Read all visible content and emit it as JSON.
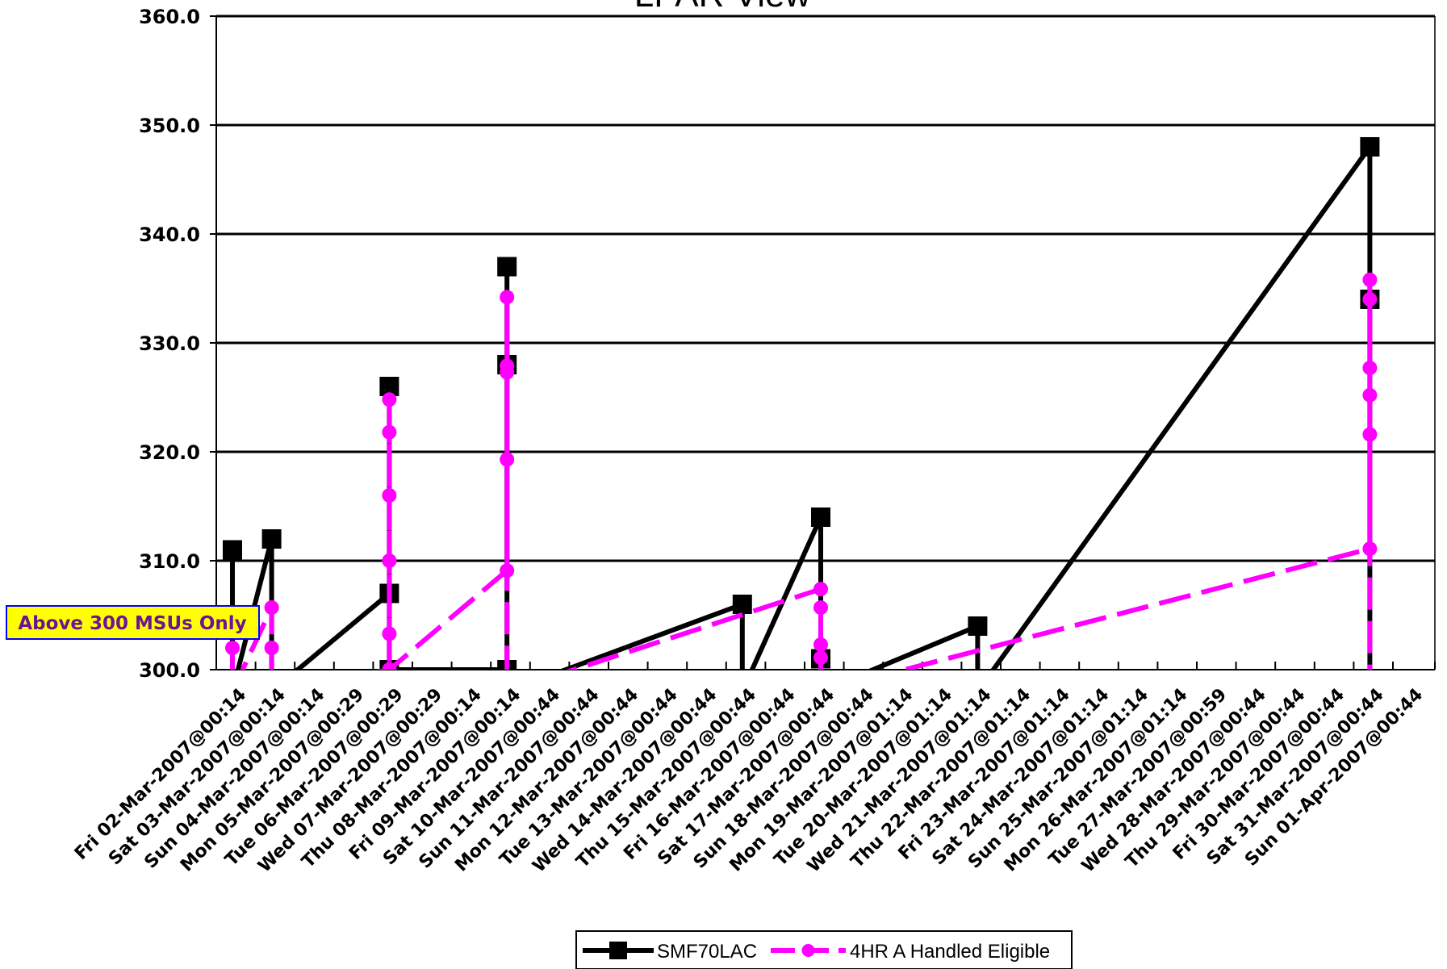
{
  "chart_data": {
    "type": "line",
    "title": "LPAR View",
    "xlabel": "",
    "ylabel": "",
    "ylim": [
      300,
      360
    ],
    "yticks": [
      "300.0",
      "310.0",
      "320.0",
      "330.0",
      "340.0",
      "350.0",
      "360.0"
    ],
    "grid": true,
    "legend_position": "bottom-center",
    "categories": [
      "Fri 02-Mar-2007@00:14",
      "Sat 03-Mar-2007@00:14",
      "Sun 04-Mar-2007@00:14",
      "Mon 05-Mar-2007@00:29",
      "Tue 06-Mar-2007@00:29",
      "Wed 07-Mar-2007@00:29",
      "Thu 08-Mar-2007@00:14",
      "Fri 09-Mar-2007@00:14",
      "Sat 10-Mar-2007@00:44",
      "Sun 11-Mar-2007@00:44",
      "Mon 12-Mar-2007@00:44",
      "Tue 13-Mar-2007@00:44",
      "Wed 14-Mar-2007@00:44",
      "Thu 15-Mar-2007@00:44",
      "Fri 16-Mar-2007@00:44",
      "Sat 17-Mar-2007@00:44",
      "Sun 18-Mar-2007@00:44",
      "Mon 19-Mar-2007@01:14",
      "Tue 20-Mar-2007@01:14",
      "Wed 21-Mar-2007@01:14",
      "Thu 22-Mar-2007@01:14",
      "Fri 23-Mar-2007@01:14",
      "Sat 24-Mar-2007@01:14",
      "Sun 25-Mar-2007@01:14",
      "Mon 26-Mar-2007@01:14",
      "Tue 27-Mar-2007@00:59",
      "Wed 28-Mar-2007@00:44",
      "Thu 29-Mar-2007@00:44",
      "Fri 30-Mar-2007@00:44",
      "Sat 31-Mar-2007@00:44",
      "Sun 01-Apr-2007@00:44"
    ],
    "series": [
      {
        "name": "SMF70LAC",
        "color": "#000000",
        "marker": "square",
        "points": [
          {
            "x": 0.0,
            "y": 311
          },
          {
            "x": 0.0,
            "y": 298
          },
          {
            "x": 1.0,
            "y": 312
          },
          {
            "x": 1.0,
            "y": 298
          },
          {
            "x": 4.0,
            "y": 307
          },
          {
            "x": 4.0,
            "y": 326
          },
          {
            "x": 4.0,
            "y": 300
          },
          {
            "x": 7.0,
            "y": 300
          },
          {
            "x": 7.0,
            "y": 337
          },
          {
            "x": 7.0,
            "y": 328
          },
          {
            "x": 7.0,
            "y": 298
          },
          {
            "x": 13.0,
            "y": 306
          },
          {
            "x": 13.0,
            "y": 298
          },
          {
            "x": 15.0,
            "y": 314
          },
          {
            "x": 15.0,
            "y": 301
          },
          {
            "x": 15.0,
            "y": 298
          },
          {
            "x": 19.0,
            "y": 304
          },
          {
            "x": 19.0,
            "y": 298
          },
          {
            "x": 29.0,
            "y": 348
          },
          {
            "x": 29.0,
            "y": 334
          },
          {
            "x": 29.0,
            "y": 298
          }
        ]
      },
      {
        "name": "4HR A Handled Eligible",
        "color": "#ff00ff",
        "marker": "circle",
        "points": [
          {
            "x": 0.0,
            "y": 302
          },
          {
            "x": 0.0,
            "y": 298
          },
          {
            "x": 1.0,
            "y": 305.7
          },
          {
            "x": 1.0,
            "y": 302
          },
          {
            "x": 1.0,
            "y": 298
          },
          {
            "x": 4.0,
            "y": 300
          },
          {
            "x": 4.0,
            "y": 303.3
          },
          {
            "x": 4.0,
            "y": 310
          },
          {
            "x": 4.0,
            "y": 316
          },
          {
            "x": 4.0,
            "y": 321.8
          },
          {
            "x": 4.0,
            "y": 324.8
          },
          {
            "x": 4.0,
            "y": 300
          },
          {
            "x": 7.0,
            "y": 309.1
          },
          {
            "x": 7.0,
            "y": 319.3
          },
          {
            "x": 7.0,
            "y": 327.3
          },
          {
            "x": 7.0,
            "y": 327.9
          },
          {
            "x": 7.0,
            "y": 334.2
          },
          {
            "x": 7.0,
            "y": 298
          },
          {
            "x": 15.0,
            "y": 307.4
          },
          {
            "x": 15.0,
            "y": 305.7
          },
          {
            "x": 15.0,
            "y": 302.3
          },
          {
            "x": 15.0,
            "y": 301.1
          },
          {
            "x": 15.0,
            "y": 298
          },
          {
            "x": 29.0,
            "y": 311.1
          },
          {
            "x": 29.0,
            "y": 321.6
          },
          {
            "x": 29.0,
            "y": 325.2
          },
          {
            "x": 29.0,
            "y": 327.7
          },
          {
            "x": 29.0,
            "y": 334
          },
          {
            "x": 29.0,
            "y": 335.8
          },
          {
            "x": 29.0,
            "y": 298
          }
        ]
      }
    ],
    "annotations": [
      {
        "text": "Above 300 MSUs Only",
        "background": "#ffff00",
        "border": "#0000ff",
        "color": "#6b1496"
      }
    ]
  }
}
